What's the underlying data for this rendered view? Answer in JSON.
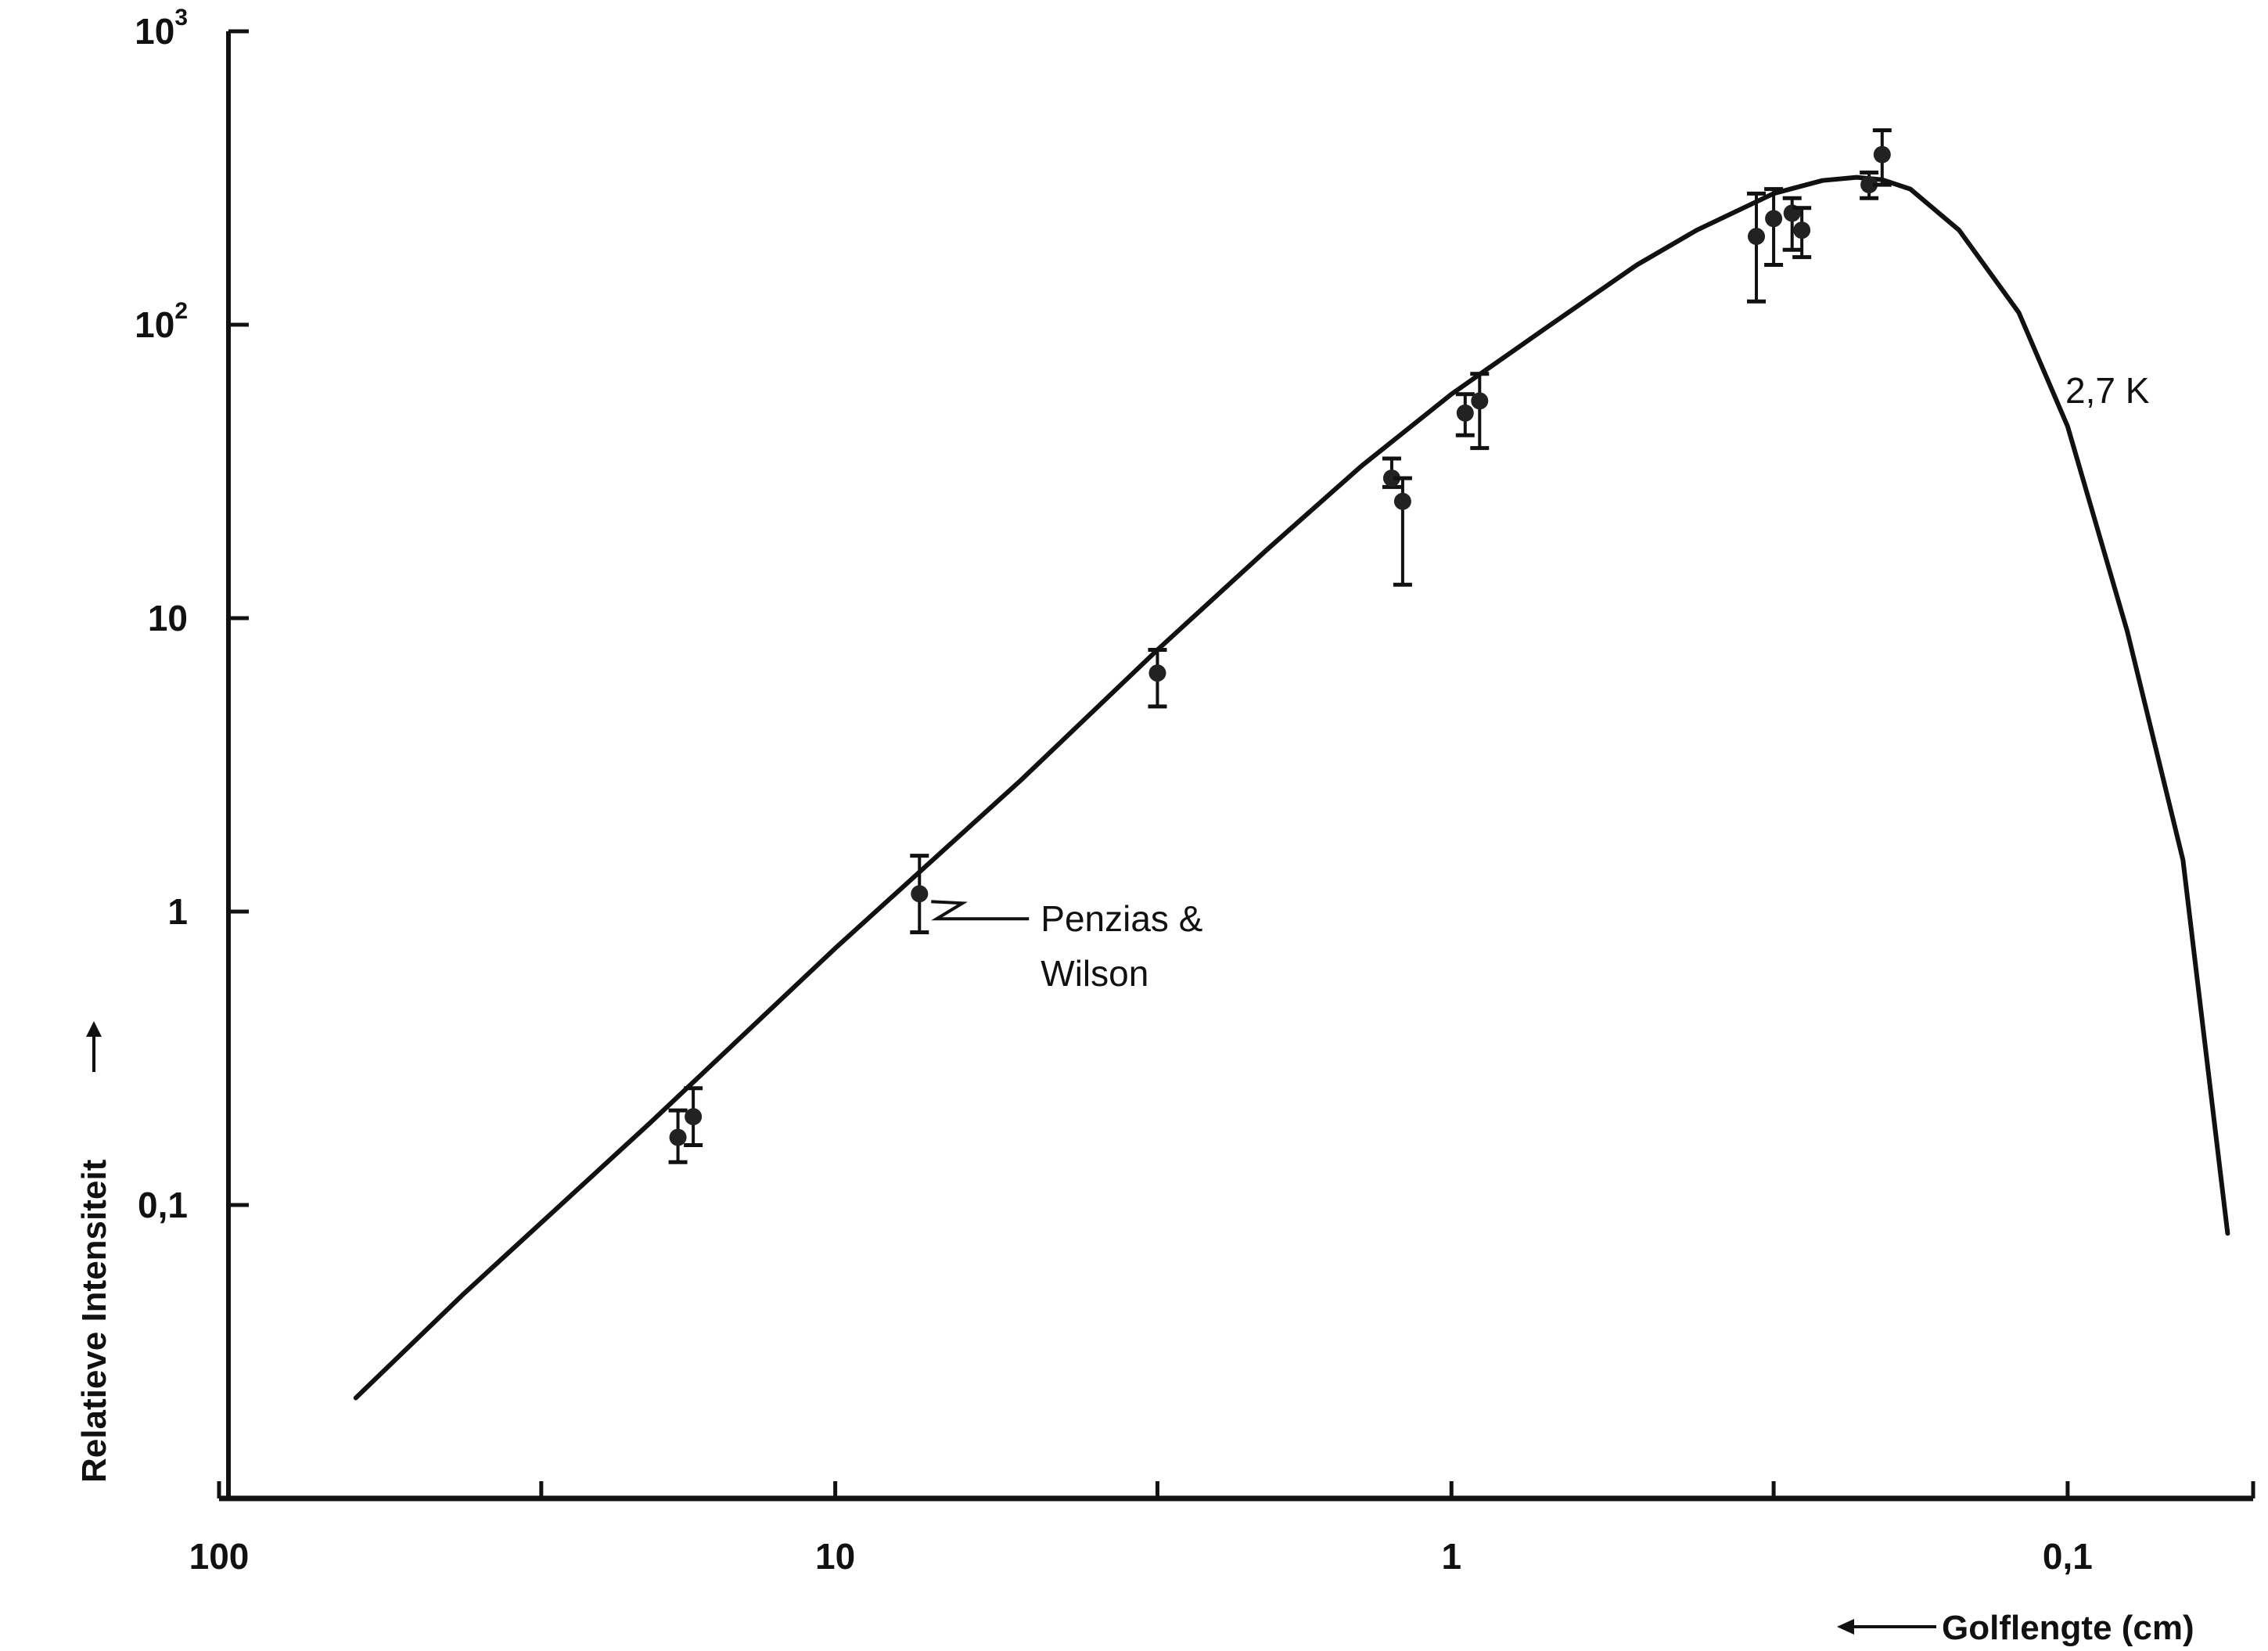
{
  "chart_data": {
    "type": "line",
    "title": "",
    "xlabel": "Golflengte (cm)",
    "ylabel": "Relatieve Intensiteit",
    "x_scale": "log",
    "y_scale": "log",
    "x_reversed": true,
    "xlim": [
      100,
      0.05
    ],
    "ylim": [
      0.01,
      1000
    ],
    "grid": false,
    "x_ticks": [
      {
        "value": 100,
        "label": "100"
      },
      {
        "value": 10,
        "label": "10"
      },
      {
        "value": 1,
        "label": "1"
      },
      {
        "value": 0.1,
        "label": "0,1"
      }
    ],
    "x_minor_ticks": [
      30,
      3,
      0.3,
      0.05
    ],
    "y_ticks": [
      {
        "value": 1000,
        "label": "10",
        "exponent": "3"
      },
      {
        "value": 100,
        "label": "10",
        "exponent": "2"
      },
      {
        "value": 10,
        "label": "10",
        "exponent": ""
      },
      {
        "value": 1,
        "label": "1",
        "exponent": ""
      },
      {
        "value": 0.1,
        "label": "0,1",
        "exponent": ""
      }
    ],
    "series": [
      {
        "name": "2,7 K",
        "kind": "curve",
        "x": [
          60,
          40,
          20,
          10,
          5,
          3,
          2,
          1.4,
          1.0,
          0.7,
          0.5,
          0.4,
          0.3,
          0.25,
          0.22,
          0.2,
          0.18,
          0.15,
          0.12,
          0.1,
          0.08,
          0.065,
          0.055
        ],
        "y": [
          0.022,
          0.05,
          0.19,
          0.75,
          2.8,
          7.8,
          17,
          33,
          58,
          98,
          160,
          210,
          280,
          310,
          318,
          312,
          290,
          210,
          110,
          45,
          9,
          1.5,
          0.08
        ]
      },
      {
        "name": "",
        "kind": "points",
        "x": [
          18.0,
          17.0,
          7.3,
          3.0,
          1.25,
          1.2,
          0.95,
          0.9,
          0.32,
          0.3,
          0.28,
          0.27,
          0.21,
          0.2
        ],
        "y": [
          0.17,
          0.2,
          1.15,
          6.5,
          30,
          25,
          50,
          55,
          200,
          230,
          240,
          210,
          300,
          380
        ],
        "y_low": [
          0.14,
          0.16,
          0.85,
          5.0,
          28,
          13,
          42,
          38,
          120,
          160,
          180,
          170,
          270,
          300
        ],
        "y_high": [
          0.21,
          0.25,
          1.55,
          7.8,
          35,
          30,
          58,
          68,
          280,
          290,
          270,
          250,
          330,
          460
        ]
      }
    ],
    "annotations": [
      {
        "text_lines": [
          "Penzias &",
          "Wilson"
        ],
        "x": 7.3,
        "y": 1.15
      },
      {
        "text": "2,7 K",
        "x": 0.1,
        "y": 90
      }
    ]
  }
}
